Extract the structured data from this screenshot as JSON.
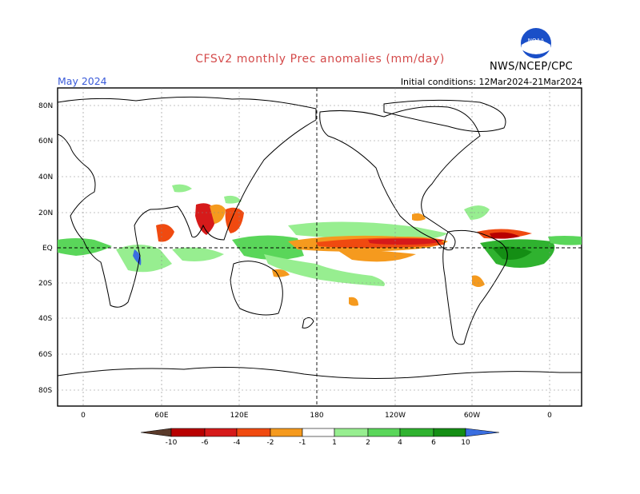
{
  "header": {
    "title": "CFSv2 monthly Prec anomalies (mm/day)",
    "month": "May 2024",
    "initial_conditions": "Initial conditions: 12Mar2024-21Mar2024",
    "agency": "NWS/NCEP/CPC",
    "logo_text": "NOAA"
  },
  "map": {
    "lat_labels": [
      "80N",
      "60N",
      "40N",
      "20N",
      "EQ",
      "20S",
      "40S",
      "60S",
      "80S"
    ],
    "lat_values": [
      80,
      60,
      40,
      20,
      0,
      -20,
      -40,
      -60,
      -80
    ],
    "lon_labels": [
      "0",
      "60E",
      "120E",
      "180",
      "120W",
      "60W",
      "0"
    ],
    "lon_values": [
      0,
      60,
      120,
      180,
      240,
      300,
      360
    ]
  },
  "colorbar": {
    "labels": [
      "-10",
      "-6",
      "-4",
      "-2",
      "-1",
      "1",
      "2",
      "4",
      "6",
      "10"
    ],
    "colors": [
      "#5a3a2a",
      "#b80000",
      "#d61a1a",
      "#f04a10",
      "#f59a1e",
      "#ffffff",
      "#97ee90",
      "#5ad65a",
      "#2fb22f",
      "#148e14",
      "#3a6ee0"
    ]
  }
}
